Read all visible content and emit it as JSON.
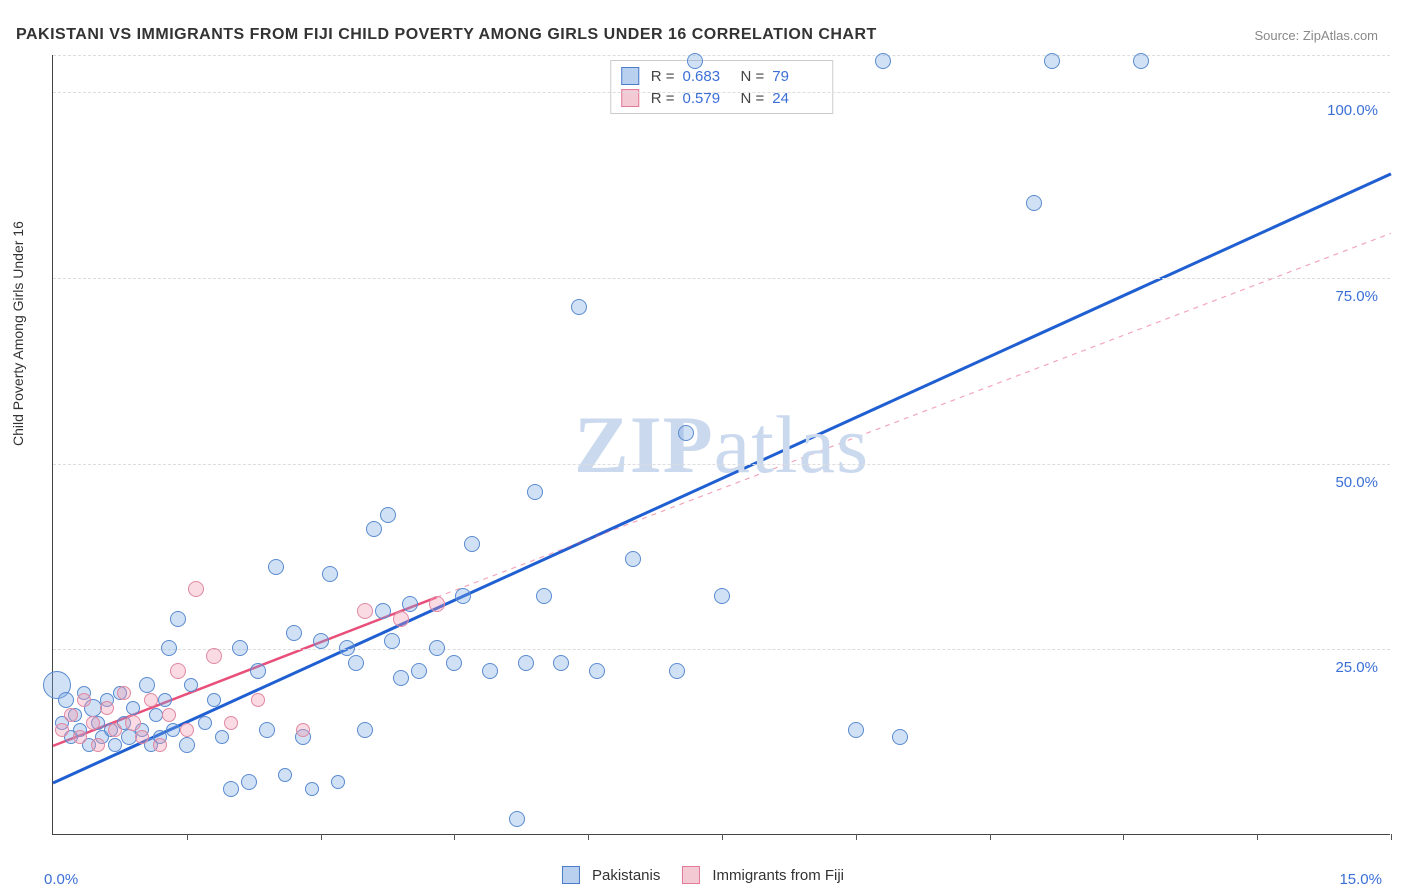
{
  "title": "PAKISTANI VS IMMIGRANTS FROM FIJI CHILD POVERTY AMONG GIRLS UNDER 16 CORRELATION CHART",
  "source_label": "Source: ZipAtlas.com",
  "ylabel": "Child Poverty Among Girls Under 16",
  "watermark_bold": "ZIP",
  "watermark_rest": "atlas",
  "chart": {
    "type": "scatter",
    "xlim": [
      0,
      15
    ],
    "ylim": [
      0,
      105
    ],
    "x_tick_positions": [
      0,
      1.5,
      3,
      4.5,
      6,
      7.5,
      9,
      10.5,
      12,
      13.5,
      15
    ],
    "y_gridlines": [
      25,
      50,
      75,
      100,
      105
    ],
    "y_tick_labels": {
      "25": "25.0%",
      "50": "50.0%",
      "75": "75.0%",
      "100": "100.0%"
    },
    "x_min_label": "0.0%",
    "x_max_label": "15.0%",
    "background_color": "#ffffff",
    "grid_color": "#dddddd",
    "axis_color": "#444444"
  },
  "series": [
    {
      "name": "Pakistanis",
      "fill": "rgba(120,165,225,0.35)",
      "stroke": "#5a8bd0",
      "swatch_fill": "#b9d0ef",
      "swatch_stroke": "#4a7cc9",
      "line_color": "#1f5fd1",
      "line_width": 3,
      "line_dash": "none",
      "marker_outline_width": 1.2,
      "R": "0.683",
      "N": "79",
      "trend": {
        "x1": 0,
        "y1": 7,
        "x2": 15,
        "y2": 89
      },
      "points": [
        {
          "x": 0.05,
          "y": 20,
          "r": 14
        },
        {
          "x": 0.1,
          "y": 15,
          "r": 7
        },
        {
          "x": 0.15,
          "y": 18,
          "r": 8
        },
        {
          "x": 0.2,
          "y": 13,
          "r": 7
        },
        {
          "x": 0.25,
          "y": 16,
          "r": 7
        },
        {
          "x": 0.3,
          "y": 14,
          "r": 7
        },
        {
          "x": 0.35,
          "y": 19,
          "r": 7
        },
        {
          "x": 0.4,
          "y": 12,
          "r": 7
        },
        {
          "x": 0.45,
          "y": 17,
          "r": 9
        },
        {
          "x": 0.5,
          "y": 15,
          "r": 7
        },
        {
          "x": 0.55,
          "y": 13,
          "r": 7
        },
        {
          "x": 0.6,
          "y": 18,
          "r": 7
        },
        {
          "x": 0.65,
          "y": 14,
          "r": 7
        },
        {
          "x": 0.7,
          "y": 12,
          "r": 7
        },
        {
          "x": 0.75,
          "y": 19,
          "r": 7
        },
        {
          "x": 0.8,
          "y": 15,
          "r": 7
        },
        {
          "x": 0.85,
          "y": 13,
          "r": 8
        },
        {
          "x": 0.9,
          "y": 17,
          "r": 7
        },
        {
          "x": 1.0,
          "y": 14,
          "r": 7
        },
        {
          "x": 1.05,
          "y": 20,
          "r": 8
        },
        {
          "x": 1.1,
          "y": 12,
          "r": 7
        },
        {
          "x": 1.15,
          "y": 16,
          "r": 7
        },
        {
          "x": 1.2,
          "y": 13,
          "r": 7
        },
        {
          "x": 1.25,
          "y": 18,
          "r": 7
        },
        {
          "x": 1.3,
          "y": 25,
          "r": 8
        },
        {
          "x": 1.35,
          "y": 14,
          "r": 7
        },
        {
          "x": 1.4,
          "y": 29,
          "r": 8
        },
        {
          "x": 1.5,
          "y": 12,
          "r": 8
        },
        {
          "x": 1.55,
          "y": 20,
          "r": 7
        },
        {
          "x": 1.7,
          "y": 15,
          "r": 7
        },
        {
          "x": 1.8,
          "y": 18,
          "r": 7
        },
        {
          "x": 1.9,
          "y": 13,
          "r": 7
        },
        {
          "x": 2.0,
          "y": 6,
          "r": 8
        },
        {
          "x": 2.1,
          "y": 25,
          "r": 8
        },
        {
          "x": 2.2,
          "y": 7,
          "r": 8
        },
        {
          "x": 2.3,
          "y": 22,
          "r": 8
        },
        {
          "x": 2.4,
          "y": 14,
          "r": 8
        },
        {
          "x": 2.5,
          "y": 36,
          "r": 8
        },
        {
          "x": 2.6,
          "y": 8,
          "r": 7
        },
        {
          "x": 2.7,
          "y": 27,
          "r": 8
        },
        {
          "x": 2.8,
          "y": 13,
          "r": 8
        },
        {
          "x": 2.9,
          "y": 6,
          "r": 7
        },
        {
          "x": 3.0,
          "y": 26,
          "r": 8
        },
        {
          "x": 3.1,
          "y": 35,
          "r": 8
        },
        {
          "x": 3.2,
          "y": 7,
          "r": 7
        },
        {
          "x": 3.3,
          "y": 25,
          "r": 8
        },
        {
          "x": 3.4,
          "y": 23,
          "r": 8
        },
        {
          "x": 3.5,
          "y": 14,
          "r": 8
        },
        {
          "x": 3.6,
          "y": 41,
          "r": 8
        },
        {
          "x": 3.7,
          "y": 30,
          "r": 8
        },
        {
          "x": 3.75,
          "y": 43,
          "r": 8
        },
        {
          "x": 3.8,
          "y": 26,
          "r": 8
        },
        {
          "x": 3.9,
          "y": 21,
          "r": 8
        },
        {
          "x": 4.0,
          "y": 31,
          "r": 8
        },
        {
          "x": 4.1,
          "y": 22,
          "r": 8
        },
        {
          "x": 4.3,
          "y": 25,
          "r": 8
        },
        {
          "x": 4.5,
          "y": 23,
          "r": 8
        },
        {
          "x": 4.6,
          "y": 32,
          "r": 8
        },
        {
          "x": 4.7,
          "y": 39,
          "r": 8
        },
        {
          "x": 4.9,
          "y": 22,
          "r": 8
        },
        {
          "x": 5.2,
          "y": 2,
          "r": 8
        },
        {
          "x": 5.3,
          "y": 23,
          "r": 8
        },
        {
          "x": 5.4,
          "y": 46,
          "r": 8
        },
        {
          "x": 5.5,
          "y": 32,
          "r": 8
        },
        {
          "x": 5.7,
          "y": 23,
          "r": 8
        },
        {
          "x": 5.9,
          "y": 71,
          "r": 8
        },
        {
          "x": 6.1,
          "y": 22,
          "r": 8
        },
        {
          "x": 6.5,
          "y": 37,
          "r": 8
        },
        {
          "x": 7.0,
          "y": 22,
          "r": 8
        },
        {
          "x": 7.1,
          "y": 54,
          "r": 8
        },
        {
          "x": 7.2,
          "y": 104,
          "r": 8
        },
        {
          "x": 7.5,
          "y": 32,
          "r": 8
        },
        {
          "x": 9.0,
          "y": 14,
          "r": 8
        },
        {
          "x": 9.3,
          "y": 104,
          "r": 8
        },
        {
          "x": 9.5,
          "y": 13,
          "r": 8
        },
        {
          "x": 11.0,
          "y": 85,
          "r": 8
        },
        {
          "x": 11.2,
          "y": 104,
          "r": 8
        },
        {
          "x": 12.2,
          "y": 104,
          "r": 8
        }
      ]
    },
    {
      "name": "Immigrants from Fiji",
      "fill": "rgba(240,150,175,0.35)",
      "stroke": "#e089a3",
      "swatch_fill": "#f3c9d4",
      "swatch_stroke": "#e27a98",
      "line_color": "#e84f7a",
      "line_width": 2.5,
      "line_dash": "none",
      "marker_outline_width": 1.2,
      "R": "0.579",
      "N": "24",
      "trend": {
        "x1": 0,
        "y1": 12,
        "x2": 4.3,
        "y2": 32
      },
      "trend_extend": {
        "x1": 4.3,
        "y1": 32,
        "x2": 15,
        "y2": 81,
        "dash": "5,5",
        "opacity": 0.5
      },
      "points": [
        {
          "x": 0.1,
          "y": 14,
          "r": 7
        },
        {
          "x": 0.2,
          "y": 16,
          "r": 7
        },
        {
          "x": 0.3,
          "y": 13,
          "r": 7
        },
        {
          "x": 0.35,
          "y": 18,
          "r": 7
        },
        {
          "x": 0.45,
          "y": 15,
          "r": 7
        },
        {
          "x": 0.5,
          "y": 12,
          "r": 7
        },
        {
          "x": 0.6,
          "y": 17,
          "r": 7
        },
        {
          "x": 0.7,
          "y": 14,
          "r": 7
        },
        {
          "x": 0.8,
          "y": 19,
          "r": 7
        },
        {
          "x": 0.9,
          "y": 15,
          "r": 8
        },
        {
          "x": 1.0,
          "y": 13,
          "r": 7
        },
        {
          "x": 1.1,
          "y": 18,
          "r": 7
        },
        {
          "x": 1.2,
          "y": 12,
          "r": 7
        },
        {
          "x": 1.3,
          "y": 16,
          "r": 7
        },
        {
          "x": 1.4,
          "y": 22,
          "r": 8
        },
        {
          "x": 1.5,
          "y": 14,
          "r": 7
        },
        {
          "x": 1.6,
          "y": 33,
          "r": 8
        },
        {
          "x": 1.8,
          "y": 24,
          "r": 8
        },
        {
          "x": 2.0,
          "y": 15,
          "r": 7
        },
        {
          "x": 2.3,
          "y": 18,
          "r": 7
        },
        {
          "x": 2.8,
          "y": 14,
          "r": 7
        },
        {
          "x": 3.5,
          "y": 30,
          "r": 8
        },
        {
          "x": 3.9,
          "y": 29,
          "r": 8
        },
        {
          "x": 4.3,
          "y": 31,
          "r": 8
        }
      ]
    }
  ],
  "legend_stats": {
    "R_label": "R =",
    "N_label": "N ="
  },
  "legend_bottom": {
    "items": [
      "Pakistanis",
      "Immigrants from Fiji"
    ]
  }
}
